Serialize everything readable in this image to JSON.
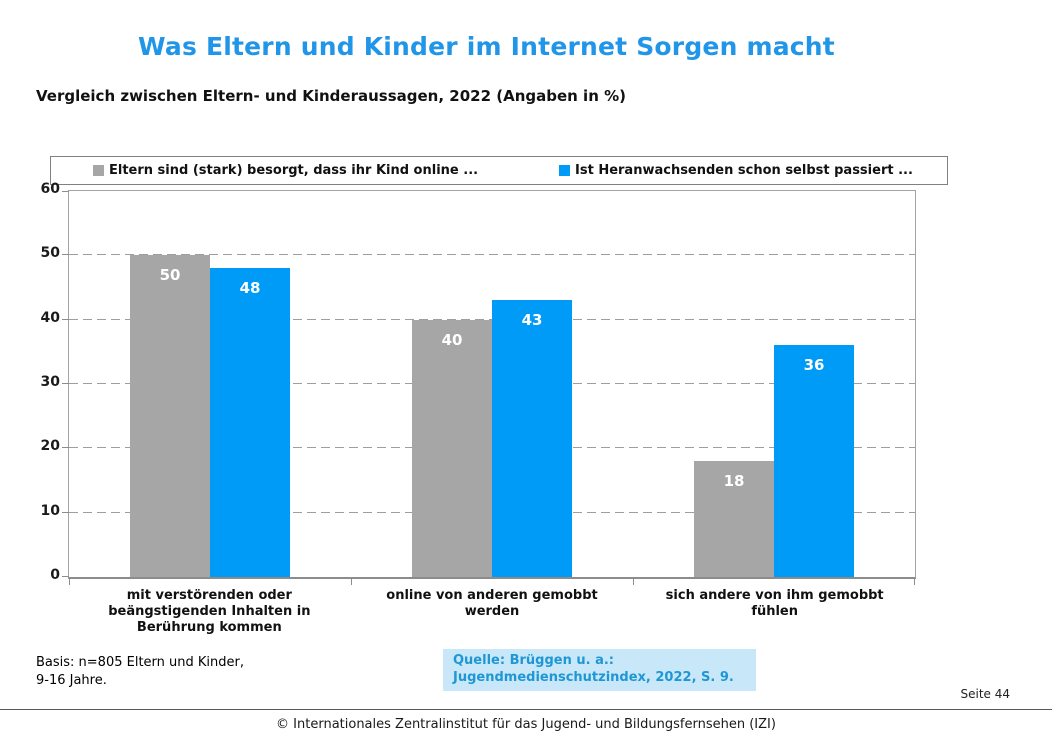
{
  "chart_data": {
    "type": "bar",
    "title": "Was Eltern und Kinder im Internet Sorgen macht",
    "subtitle": "Vergleich zwischen Eltern- und Kinderaussagen, 2022 (Angaben in %)",
    "categories": [
      "mit verstörenden oder beängstigenden Inhalten in Berührung kommen",
      "online von anderen gemobbt werden",
      "sich andere von ihm gemobbt fühlen"
    ],
    "series": [
      {
        "name": "Eltern sind (stark) besorgt, dass ihr Kind online ...",
        "color": "#a6a6a6",
        "values": [
          50,
          40,
          18
        ]
      },
      {
        "name": "Ist Heranwachsenden schon selbst passiert ...",
        "color": "#009af7",
        "values": [
          48,
          43,
          36
        ]
      }
    ],
    "ylim": [
      0,
      60
    ],
    "yticks": [
      0,
      10,
      20,
      30,
      40,
      50,
      60
    ],
    "grid": "horizontal-dashed",
    "legend_position": "top",
    "value_labels": "inside-top-white"
  },
  "notes": {
    "basis": "Basis: n=805 Eltern und Kinder,\n9-16 Jahre."
  },
  "source": {
    "text": "Quelle: Brüggen u. a.:\nJugendmedienschutzindex, 2022, S. 9.",
    "bg_color": "#c8e7f8",
    "text_color": "#1f97d4"
  },
  "footer": {
    "page_label": "Seite 44",
    "copyright": "©  Internationales Zentralinstitut für das Jugend- und Bildungsfernsehen (IZI)"
  },
  "colors": {
    "title": "#2196e8",
    "gridline": "#9e9e9e",
    "axis": "#8c8c8c"
  }
}
